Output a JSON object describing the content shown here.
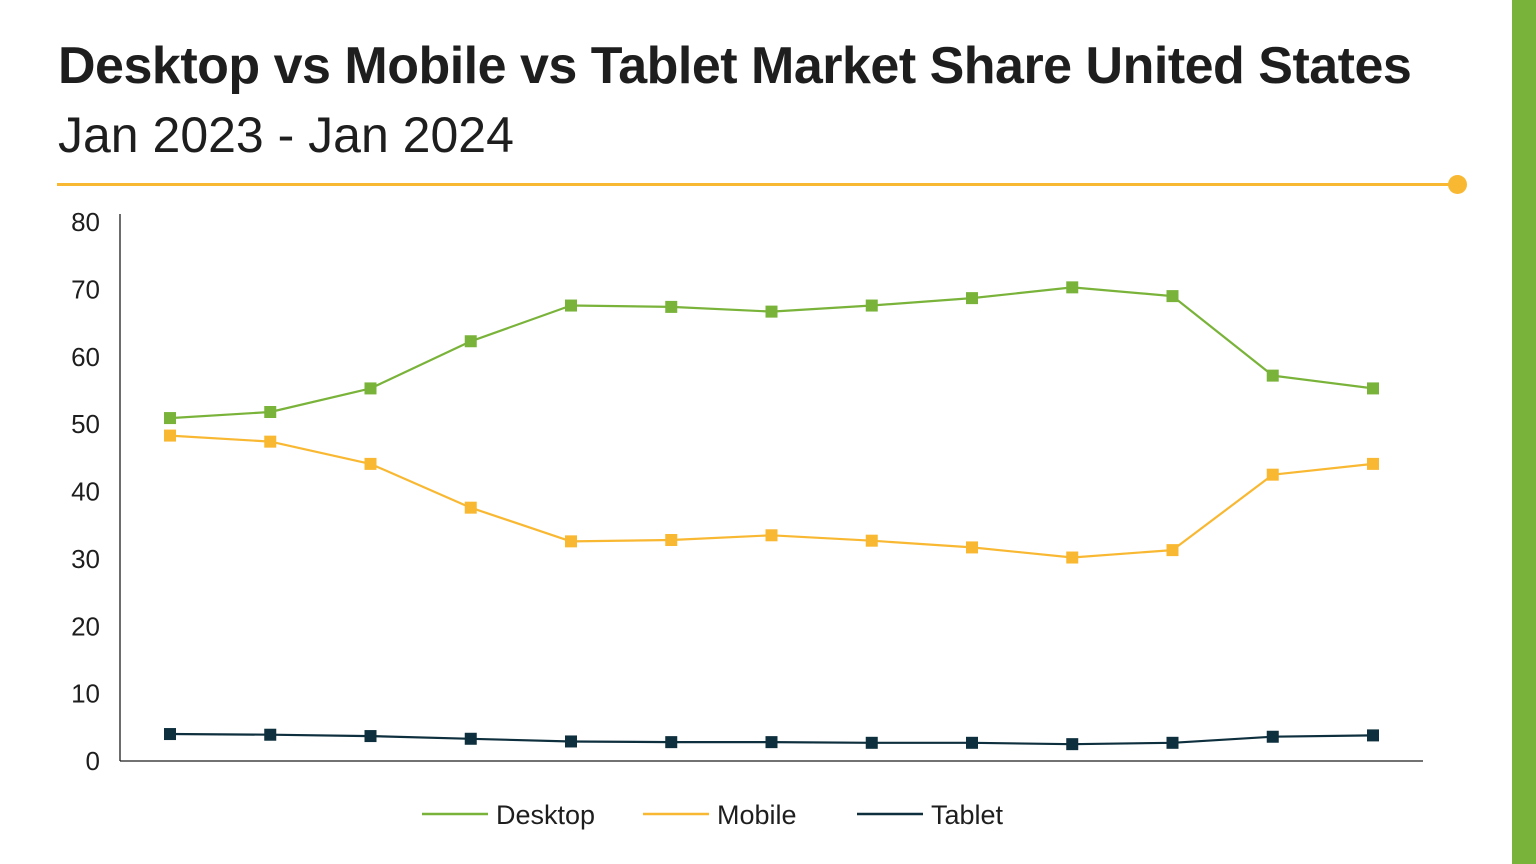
{
  "header": {
    "title": "Desktop vs Mobile vs Tablet Market Share United States",
    "subtitle": "Jan 2023 - Jan 2024"
  },
  "colors": {
    "accent_rule": "#f9b832",
    "side_bar": "#7ab33a"
  },
  "chart_data": {
    "type": "line",
    "title": "Desktop vs Mobile vs Tablet Market Share United States",
    "subtitle": "Jan 2023 - Jan 2024",
    "xlabel": "",
    "ylabel": "",
    "ylim": [
      0,
      80
    ],
    "yticks": [
      0,
      10,
      20,
      30,
      40,
      50,
      60,
      70,
      80
    ],
    "x_count": 13,
    "grid": false,
    "legend_position": "bottom",
    "marker": "square",
    "series": [
      {
        "name": "Desktop",
        "color": "#7ab33a",
        "values": [
          50.9,
          51.8,
          55.3,
          62.3,
          67.6,
          67.4,
          66.7,
          67.6,
          68.7,
          70.3,
          69.0,
          57.2,
          55.3
        ]
      },
      {
        "name": "Mobile",
        "color": "#f9b832",
        "values": [
          48.3,
          47.4,
          44.1,
          37.6,
          32.6,
          32.8,
          33.5,
          32.7,
          31.7,
          30.2,
          31.3,
          42.5,
          44.1
        ]
      },
      {
        "name": "Tablet",
        "color": "#0e2f3d",
        "values": [
          4.0,
          3.9,
          3.7,
          3.3,
          2.9,
          2.8,
          2.8,
          2.7,
          2.7,
          2.5,
          2.7,
          3.6,
          3.8
        ]
      }
    ]
  }
}
